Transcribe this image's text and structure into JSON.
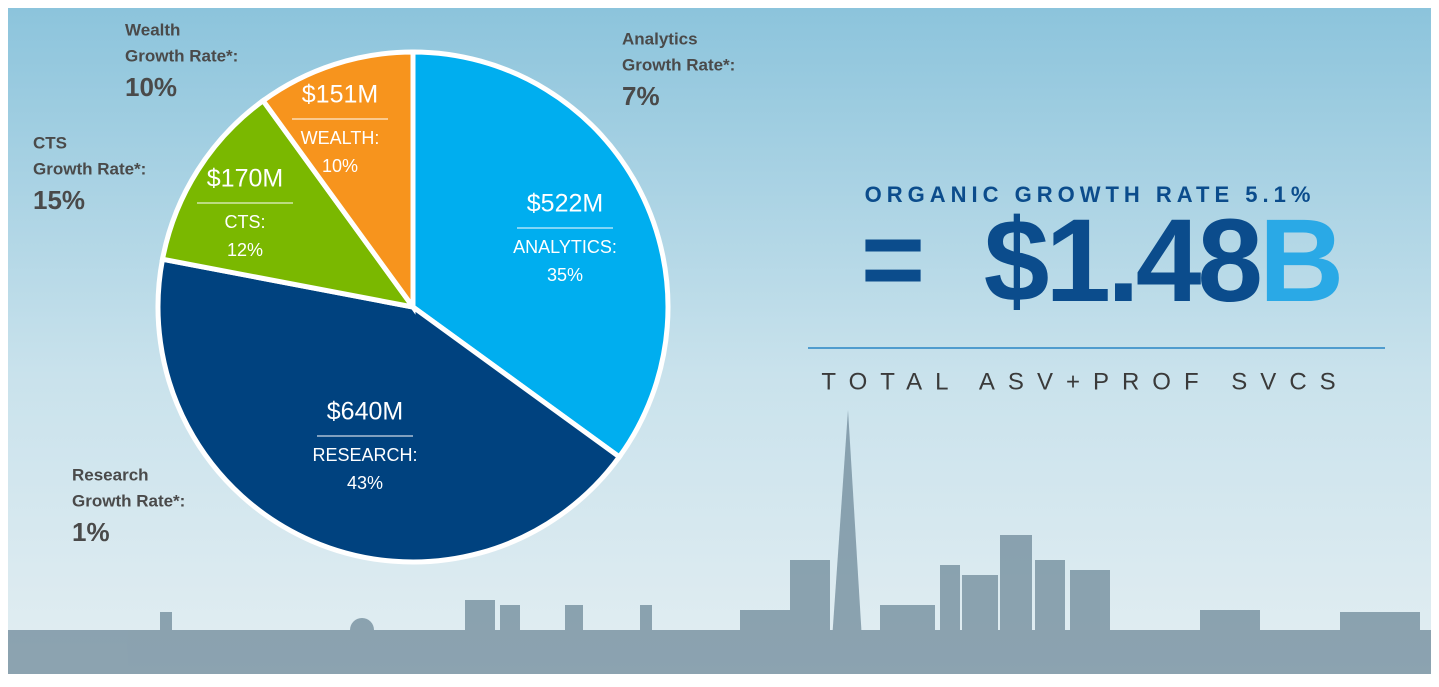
{
  "chart_data": {
    "type": "pie",
    "categories": [
      "ANALYTICS:",
      "RESEARCH:",
      "CTS:",
      "WEALTH:"
    ],
    "values": [
      35,
      43,
      12,
      10
    ],
    "value_labels": [
      "35%",
      "43%",
      "12%",
      "10%"
    ],
    "amount_labels": [
      "$522M",
      "$640M",
      "$170M",
      "$151M"
    ],
    "colors": [
      "#00aeef",
      "#00427f",
      "#7ab800",
      "#f7941d"
    ],
    "growth_notes": [
      {
        "name": "Analytics",
        "label": "Growth Rate*:",
        "rate": "7%"
      },
      {
        "name": "Research",
        "label": "Growth Rate*:",
        "rate": "1%"
      },
      {
        "name": "CTS",
        "label": "Growth Rate*:",
        "rate": "15%"
      },
      {
        "name": "Wealth",
        "label": "Growth Rate*:",
        "rate": "10%"
      }
    ]
  },
  "headline": {
    "subtitle": "ORGANIC GROWTH RATE 5.1%",
    "equals": "=",
    "amount": "$1.48",
    "unit": "B",
    "caption": "TOTAL ASV+PROF SVCS"
  }
}
